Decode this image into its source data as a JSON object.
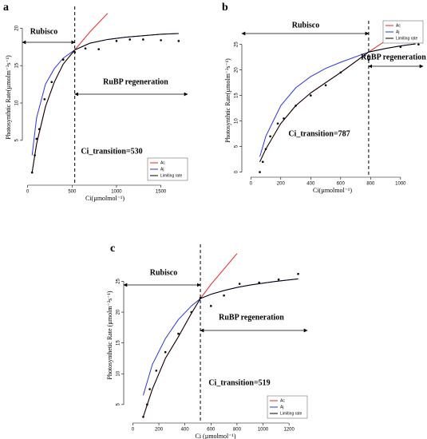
{
  "chart_data": [
    {
      "type": "line",
      "label": "a",
      "xlabel": "Ci(µmolmol⁻¹)",
      "ylabel": "Photosynthtic Rate(µmolm⁻²s⁻¹)",
      "x": [
        50,
        100,
        200,
        300,
        400,
        530,
        700,
        900,
        1100,
        1300,
        1500,
        1700
      ],
      "series": [
        {
          "name": "Ac",
          "color": "#e8241f",
          "values": [
            0.7,
            4.5,
            9.5,
            12.8,
            15.2,
            17.1,
            19.5,
            22,
            null,
            null,
            null,
            null
          ]
        },
        {
          "name": "Aj",
          "color": "#2a35e0",
          "values": [
            3,
            8,
            12.5,
            14.6,
            16,
            17.1,
            18,
            18.5,
            18.8,
            19,
            19.2,
            19.3
          ]
        },
        {
          "name": "Limiting rate",
          "color": "#000000",
          "values": [
            0.7,
            4.5,
            9.5,
            12.8,
            15.2,
            17.1,
            18,
            18.5,
            18.8,
            19,
            19.2,
            19.3
          ]
        }
      ],
      "points": {
        "x": [
          50,
          80,
          100,
          130,
          190,
          270,
          400,
          530,
          650,
          800,
          1000,
          1150,
          1300,
          1500,
          1700
        ],
        "y": [
          0.7,
          3,
          5.2,
          6.5,
          10.5,
          12.8,
          15.8,
          16.8,
          17.3,
          17.2,
          18.3,
          18.5,
          18.5,
          18.4,
          18.3
        ]
      },
      "xlim": [
        -60,
        1800
      ],
      "xticks": [
        0,
        500,
        1000,
        1500
      ],
      "ylim": [
        -1,
        22.5
      ],
      "yticks": [
        5,
        10,
        15,
        20
      ],
      "transition": 530,
      "rubisco": "Rubisco",
      "rubp": "RuBP regeneration",
      "transition_text": "Ci_transition=530",
      "legend": "lower right"
    },
    {
      "type": "line",
      "label": "b",
      "xlabel": "Ci(µmolmol⁻¹)",
      "ylabel": "Photosynthtic Rate(µmolm⁻²s⁻¹)",
      "x": [
        60,
        100,
        200,
        300,
        400,
        500,
        600,
        787,
        900,
        1000,
        1100
      ],
      "series": [
        {
          "name": "Ac",
          "color": "#e8241f",
          "values": [
            2,
            4.5,
            9.5,
            13,
            15.5,
            17.5,
            19.5,
            23.5,
            25.7,
            27.5,
            29
          ]
        },
        {
          "name": "Aj",
          "color": "#2a35e0",
          "values": [
            3,
            7,
            13,
            16.5,
            18.7,
            20.3,
            21.5,
            23.5,
            24.2,
            24.7,
            25.1
          ]
        },
        {
          "name": "Limiting rate",
          "color": "#000000",
          "values": [
            2,
            4.5,
            9.5,
            13,
            15.5,
            17.5,
            19.5,
            23.5,
            24.2,
            24.7,
            25.1
          ]
        }
      ],
      "points": {
        "x": [
          60,
          80,
          100,
          130,
          180,
          220,
          300,
          400,
          500,
          600,
          787,
          1000,
          1120
        ],
        "y": [
          0,
          2,
          4.5,
          7,
          9.5,
          10.5,
          13,
          15,
          17,
          19.5,
          22,
          24.5,
          25
        ]
      },
      "xlim": [
        -60,
        1150
      ],
      "xticks": [
        0,
        200,
        400,
        600,
        800,
        1000
      ],
      "ylim": [
        -1,
        29
      ],
      "yticks": [
        0,
        5,
        10,
        15,
        20,
        25
      ],
      "transition": 787,
      "rubisco": "Rubisco",
      "rubp": "RuBP regeneration",
      "transition_text": "Ci_transition=787",
      "legend": "upper right"
    },
    {
      "type": "line",
      "label": "c",
      "xlabel": "Ci (µmolmol⁻¹)",
      "ylabel": "Photosynthetic Rate (µmolm⁻²s⁻¹)",
      "x": [
        80,
        150,
        250,
        350,
        450,
        519,
        600,
        700,
        800,
        900,
        1000,
        1100,
        1270
      ],
      "series": [
        {
          "name": "Ac",
          "color": "#e8241f",
          "values": [
            3,
            7.5,
            12.5,
            16,
            19.8,
            22.2,
            24.5,
            27,
            29.5,
            null,
            null,
            null,
            null
          ]
        },
        {
          "name": "Aj",
          "color": "#2a35e0",
          "values": [
            6.5,
            11.5,
            15.7,
            18.8,
            21,
            22.2,
            22.9,
            23.5,
            24,
            24.4,
            24.7,
            25,
            25.4
          ]
        },
        {
          "name": "Limiting rate",
          "color": "#000000",
          "values": [
            3,
            7.5,
            12.5,
            16,
            19.8,
            22.2,
            22.9,
            23.5,
            24,
            24.4,
            24.7,
            25,
            25.4
          ]
        }
      ],
      "points": {
        "x": [
          80,
          110,
          130,
          180,
          250,
          350,
          450,
          519,
          600,
          700,
          820,
          970,
          1120,
          1270
        ],
        "y": [
          3,
          5,
          7.5,
          10.5,
          13.5,
          16.5,
          20,
          22.3,
          21,
          22.7,
          24.6,
          24.8,
          25.3,
          26.2
        ]
      },
      "xlim": [
        -70,
        1340
      ],
      "xticks": [
        0,
        200,
        400,
        600,
        800,
        1000,
        1200
      ],
      "ylim": [
        2,
        30.5
      ],
      "yticks": [
        5,
        10,
        15,
        20,
        25
      ],
      "transition": 519,
      "rubisco": "Rubisco",
      "rubp": "RuBP regeneration",
      "transition_text": "Ci_transition=519",
      "legend": "lower right"
    }
  ]
}
